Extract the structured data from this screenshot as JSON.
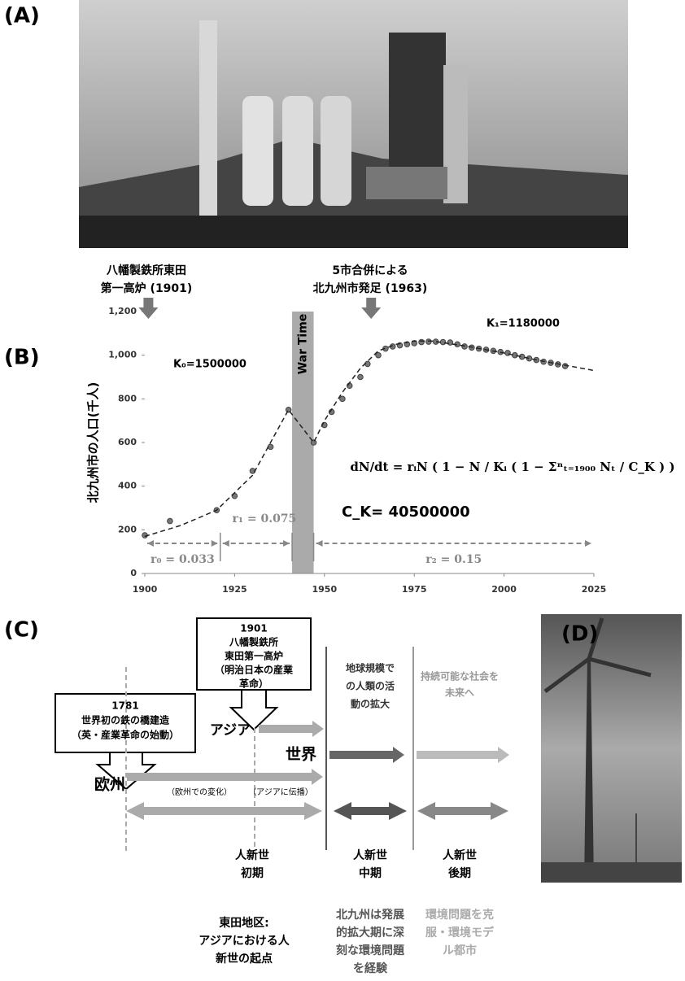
{
  "panels": {
    "a": "(A)",
    "b": "(B)",
    "c": "(C)",
    "d": "(D)"
  },
  "chart_data": {
    "type": "scatter",
    "ylabel": "北九州市の人口(千人)",
    "xlim": [
      1900,
      2025
    ],
    "xticks": [
      1900,
      1925,
      1950,
      1975,
      2000,
      2025
    ],
    "ylim": [
      0,
      1200
    ],
    "yticks": [
      0,
      200,
      400,
      600,
      800,
      {
        "value": 1000,
        "label": "1,000"
      },
      {
        "value": 1200,
        "label": "1,200"
      }
    ],
    "grid": false,
    "series": [
      {
        "style": "markers",
        "color": "#777",
        "x": [
          1900,
          1907,
          1920,
          1925,
          1930,
          1935,
          1940,
          1947,
          1950,
          1952,
          1955,
          1957,
          1960,
          1962,
          1965,
          1967,
          1969,
          1971,
          1973,
          1975,
          1977,
          1979,
          1981,
          1983,
          1985,
          1987,
          1989,
          1991,
          1993,
          1995,
          1997,
          1999,
          2001,
          2003,
          2005,
          2007,
          2009,
          2011,
          2013,
          2015,
          2017
        ],
        "values": [
          175,
          240,
          290,
          355,
          470,
          580,
          750,
          600,
          680,
          740,
          800,
          860,
          900,
          960,
          1000,
          1030,
          1040,
          1045,
          1050,
          1055,
          1060,
          1062,
          1062,
          1060,
          1058,
          1050,
          1040,
          1035,
          1030,
          1025,
          1020,
          1015,
          1010,
          1000,
          993,
          985,
          978,
          970,
          965,
          958,
          950
        ]
      },
      {
        "style": "dashed",
        "color": "#222",
        "x": [
          1900,
          1910,
          1920,
          1930,
          1940,
          1947,
          1950,
          1955,
          1960,
          1965,
          1970,
          1975,
          1980,
          1990,
          2000,
          2010,
          2025
        ],
        "values": [
          170,
          220,
          290,
          450,
          750,
          600,
          700,
          830,
          940,
          1020,
          1050,
          1065,
          1065,
          1040,
          1010,
          975,
          930
        ]
      }
    ],
    "war": {
      "label": "War Time",
      "start": 1941,
      "end": 1947
    },
    "events": [
      {
        "lines": [
          "八幡製鉄所東田",
          "第一高炉 (1901)"
        ],
        "year": 1901
      },
      {
        "lines": [
          "5市合併による",
          "北九州市発足 (1963)"
        ],
        "year": 1963
      }
    ],
    "k0": "K₀=1500000",
    "k1": "K₁=1180000",
    "equation": [
      "dN/dt = rᵢN ( 1 − N / Kᵢ ( 1 − Σⁿₜ₌₁₉₀₀ Nₜ / C_K ) )"
    ],
    "ck": "C_K= 40500000",
    "periods": [
      {
        "label": "r₀ = 0.033",
        "start": 1900,
        "end": 1921
      },
      {
        "label": "r₁ = 0.075",
        "start": 1921,
        "end": 1941
      },
      {
        "label": "r₂ = 0.15",
        "start": 1947,
        "end": 2025
      }
    ]
  },
  "diagram": {
    "box_1781": [
      "1781",
      "世界初の鉄の橋建造",
      "（英・産業革命の始動）"
    ],
    "box_1901": [
      "1901",
      "八幡製鉄所",
      "東田第一高炉",
      "（明治日本の産業",
      "革命）"
    ],
    "asia": "アジア",
    "world": "世界",
    "europe": "欧州",
    "global": [
      "地球規模で",
      "の人類の活",
      "動の拡大"
    ],
    "sustainable": [
      "持続可能な社会を",
      "未来へ"
    ],
    "europe_change": "（欧州での変化）",
    "asia_spread": "（アジアに伝播）",
    "early": [
      "人新世",
      "初期"
    ],
    "middle": [
      "人新世",
      "中期"
    ],
    "late": [
      "人新世",
      "後期"
    ],
    "note_early": [
      "東田地区:",
      "アジアにおける人",
      "新世の起点"
    ],
    "note_middle": [
      "北九州は発展",
      "的拡大期に深",
      "刻な環境問題",
      "を経験"
    ],
    "note_late": [
      "環境問題を克",
      "服・環境モデ",
      "ル都市"
    ]
  }
}
